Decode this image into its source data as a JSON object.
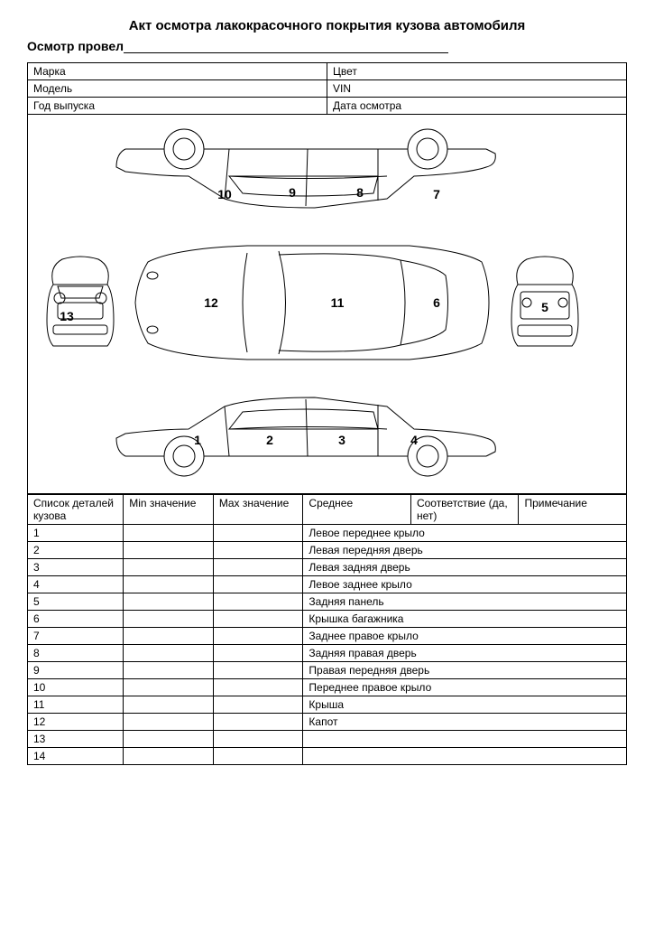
{
  "title": "Акт осмотра лакокрасочного покрытия кузова автомобиля",
  "inspector_label": "Осмотр провел",
  "info": {
    "r1c1": "Марка",
    "r1c2": "Цвет",
    "r2c1": "Модель",
    "r2c2": "VIN",
    "r3c1": "Год выпуска",
    "r3c2": "Дата осмотра"
  },
  "diagram_labels": {
    "1": "1",
    "2": "2",
    "3": "3",
    "4": "4",
    "5": "5",
    "6": "6",
    "7": "7",
    "8": "8",
    "9": "9",
    "10": "10",
    "11": "11",
    "12": "12",
    "13": "13"
  },
  "columns": {
    "c1": "Список деталей кузова",
    "c2": "Min значение",
    "c3": "Max значение",
    "c4": "Среднее",
    "c5": "Соответствие (да, нет)",
    "c6": "Примечание"
  },
  "rows": [
    {
      "n": "1",
      "name": "Левое переднее крыло"
    },
    {
      "n": "2",
      "name": "Левая передняя дверь"
    },
    {
      "n": "3",
      "name": "Левая задняя дверь"
    },
    {
      "n": "4",
      "name": "Левое заднее крыло"
    },
    {
      "n": "5",
      "name": "Задняя панель"
    },
    {
      "n": "6",
      "name": "Крышка багажника"
    },
    {
      "n": "7",
      "name": "Заднее правое крыло"
    },
    {
      "n": "8",
      "name": "Задняя правая дверь"
    },
    {
      "n": "9",
      "name": "Правая передняя дверь"
    },
    {
      "n": "10",
      "name": "Переднее правое крыло"
    },
    {
      "n": "11",
      "name": "Крыша"
    },
    {
      "n": "12",
      "name": "Капот"
    },
    {
      "n": "13",
      "name": ""
    },
    {
      "n": "14",
      "name": ""
    }
  ],
  "style": {
    "background": "#ffffff",
    "border_color": "#000000",
    "text_color": "#000000",
    "title_fontsize": 15,
    "body_fontsize": 12,
    "label_fontsize": 14
  }
}
